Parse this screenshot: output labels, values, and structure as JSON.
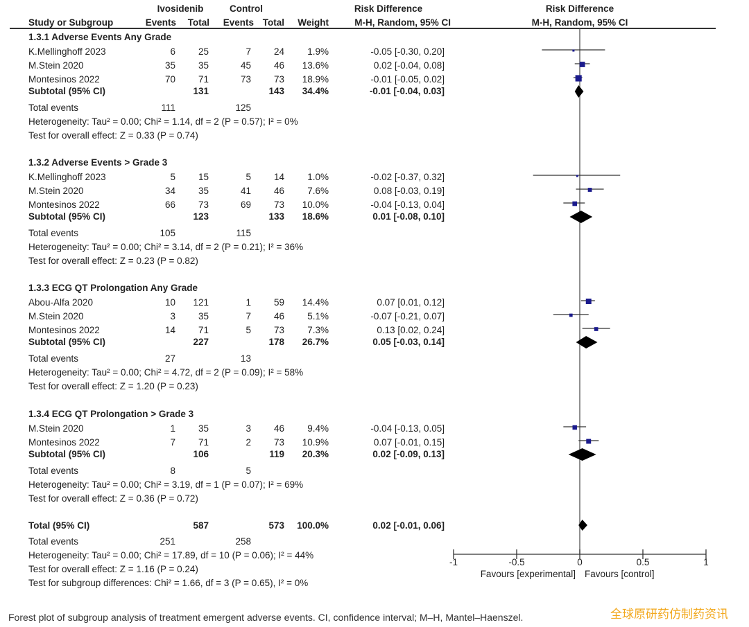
{
  "header": {
    "group1": "Ivosidenib",
    "group2": "Control",
    "study_col": "Study or Subgroup",
    "events": "Events",
    "total": "Total",
    "weight": "Weight",
    "rd_title": "Risk Difference",
    "rd_method": "M-H, Random, 95% CI",
    "plot_title": "Risk Difference",
    "plot_method": "M-H, Random, 95% CI"
  },
  "chart_data": {
    "type": "forest",
    "effect_measure": "Risk Difference (M-H, Random, 95% CI)",
    "xlim": [
      -1,
      1
    ],
    "ticks": [
      "-1",
      "-0.5",
      "0",
      "0.5",
      "1"
    ],
    "tick_values": [
      -1,
      -0.5,
      0,
      0.5,
      1
    ],
    "xlabel_left": "Favours [experimental]",
    "xlabel_right": "Favours [control]",
    "marker_color": "#1a1a8c",
    "subgroups": [
      {
        "title": "1.3.1 Adverse Events Any Grade",
        "studies": [
          {
            "name": "K.Mellinghoff 2023",
            "e1": "6",
            "n1": "25",
            "e2": "7",
            "n2": "24",
            "weight": "1.9%",
            "ci_text": "-0.05 [-0.30, 0.20]",
            "est": -0.05,
            "lo": -0.3,
            "hi": 0.2,
            "w": 1.9
          },
          {
            "name": "M.Stein 2020",
            "e1": "35",
            "n1": "35",
            "e2": "45",
            "n2": "46",
            "weight": "13.6%",
            "ci_text": "0.02 [-0.04, 0.08]",
            "est": 0.02,
            "lo": -0.04,
            "hi": 0.08,
            "w": 13.6
          },
          {
            "name": "Montesinos 2022",
            "e1": "70",
            "n1": "71",
            "e2": "73",
            "n2": "73",
            "weight": "18.9%",
            "ci_text": "-0.01 [-0.05, 0.02]",
            "est": -0.01,
            "lo": -0.05,
            "hi": 0.02,
            "w": 18.9
          }
        ],
        "subtotal": {
          "label": "Subtotal (95% CI)",
          "n1": "131",
          "n2": "143",
          "weight": "34.4%",
          "ci_text": "-0.01 [-0.04, 0.03]",
          "est": -0.01,
          "lo": -0.04,
          "hi": 0.03
        },
        "total_events": {
          "label": "Total events",
          "e1": "111",
          "e2": "125"
        },
        "heterogeneity": "Heterogeneity: Tau² = 0.00; Chi² = 1.14, df = 2 (P = 0.57); I² = 0%",
        "overall": "Test for overall effect: Z = 0.33 (P = 0.74)"
      },
      {
        "title": "1.3.2 Adverse Events > Grade 3",
        "studies": [
          {
            "name": "K.Mellinghoff 2023",
            "e1": "5",
            "n1": "15",
            "e2": "5",
            "n2": "14",
            "weight": "1.0%",
            "ci_text": "-0.02 [-0.37, 0.32]",
            "est": -0.02,
            "lo": -0.37,
            "hi": 0.32,
            "w": 1.0
          },
          {
            "name": "M.Stein 2020",
            "e1": "34",
            "n1": "35",
            "e2": "41",
            "n2": "46",
            "weight": "7.6%",
            "ci_text": "0.08 [-0.03, 0.19]",
            "est": 0.08,
            "lo": -0.03,
            "hi": 0.19,
            "w": 7.6
          },
          {
            "name": "Montesinos 2022",
            "e1": "66",
            "n1": "73",
            "e2": "69",
            "n2": "73",
            "weight": "10.0%",
            "ci_text": "-0.04 [-0.13, 0.04]",
            "est": -0.04,
            "lo": -0.13,
            "hi": 0.04,
            "w": 10.0
          }
        ],
        "subtotal": {
          "label": "Subtotal (95% CI)",
          "n1": "123",
          "n2": "133",
          "weight": "18.6%",
          "ci_text": "0.01 [-0.08, 0.10]",
          "est": 0.01,
          "lo": -0.08,
          "hi": 0.1
        },
        "total_events": {
          "label": "Total events",
          "e1": "105",
          "e2": "115"
        },
        "heterogeneity": "Heterogeneity: Tau² = 0.00; Chi² = 3.14, df = 2 (P = 0.21); I² = 36%",
        "overall": "Test for overall effect: Z = 0.23 (P = 0.82)"
      },
      {
        "title": "1.3.3 ECG QT Prolongation Any Grade",
        "studies": [
          {
            "name": "Abou-Alfa 2020",
            "e1": "10",
            "n1": "121",
            "e2": "1",
            "n2": "59",
            "weight": "14.4%",
            "ci_text": "0.07 [0.01, 0.12]",
            "est": 0.07,
            "lo": 0.01,
            "hi": 0.12,
            "w": 14.4
          },
          {
            "name": "M.Stein 2020",
            "e1": "3",
            "n1": "35",
            "e2": "7",
            "n2": "46",
            "weight": "5.1%",
            "ci_text": "-0.07 [-0.21, 0.07]",
            "est": -0.07,
            "lo": -0.21,
            "hi": 0.07,
            "w": 5.1
          },
          {
            "name": "Montesinos 2022",
            "e1": "14",
            "n1": "71",
            "e2": "5",
            "n2": "73",
            "weight": "7.3%",
            "ci_text": "0.13 [0.02, 0.24]",
            "est": 0.13,
            "lo": 0.02,
            "hi": 0.24,
            "w": 7.3
          }
        ],
        "subtotal": {
          "label": "Subtotal (95% CI)",
          "n1": "227",
          "n2": "178",
          "weight": "26.7%",
          "ci_text": "0.05 [-0.03, 0.14]",
          "est": 0.05,
          "lo": -0.03,
          "hi": 0.14
        },
        "total_events": {
          "label": "Total events",
          "e1": "27",
          "e2": "13"
        },
        "heterogeneity": "Heterogeneity: Tau² = 0.00; Chi² = 4.72, df = 2 (P = 0.09); I² = 58%",
        "overall": "Test for overall effect: Z = 1.20 (P = 0.23)"
      },
      {
        "title": "1.3.4 ECG QT Prolongation > Grade 3",
        "studies": [
          {
            "name": "M.Stein 2020",
            "e1": "1",
            "n1": "35",
            "e2": "3",
            "n2": "46",
            "weight": "9.4%",
            "ci_text": "-0.04 [-0.13, 0.05]",
            "est": -0.04,
            "lo": -0.13,
            "hi": 0.05,
            "w": 9.4
          },
          {
            "name": "Montesinos 2022",
            "e1": "7",
            "n1": "71",
            "e2": "2",
            "n2": "73",
            "weight": "10.9%",
            "ci_text": "0.07 [-0.01, 0.15]",
            "est": 0.07,
            "lo": -0.01,
            "hi": 0.15,
            "w": 10.9
          }
        ],
        "subtotal": {
          "label": "Subtotal (95% CI)",
          "n1": "106",
          "n2": "119",
          "weight": "20.3%",
          "ci_text": "0.02 [-0.09, 0.13]",
          "est": 0.02,
          "lo": -0.09,
          "hi": 0.13
        },
        "total_events": {
          "label": "Total events",
          "e1": "8",
          "e2": "5"
        },
        "heterogeneity": "Heterogeneity: Tau² = 0.00; Chi² = 3.19, df = 1 (P = 0.07); I² = 69%",
        "overall": "Test for overall effect: Z = 0.36 (P = 0.72)"
      }
    ],
    "total": {
      "label": "Total (95% CI)",
      "n1": "587",
      "n2": "573",
      "weight": "100.0%",
      "ci_text": "0.02 [-0.01, 0.06]",
      "est": 0.02,
      "lo": -0.01,
      "hi": 0.06
    },
    "total_events": {
      "label": "Total events",
      "e1": "251",
      "e2": "258"
    },
    "heterogeneity": "Heterogeneity: Tau² = 0.00; Chi² = 17.89, df = 10 (P = 0.06); I² = 44%",
    "overall": "Test for overall effect: Z = 1.16 (P = 0.24)",
    "subgroup_diff": "Test for subgroup differences: Chi² = 1.66, df = 3 (P = 0.65), I² = 0%"
  },
  "caption": "Forest plot of subgroup analysis of treatment emergent adverse events. CI, confidence interval; M–H, Mantel–Haenszel.",
  "watermark": "全球原研药仿制药资讯"
}
